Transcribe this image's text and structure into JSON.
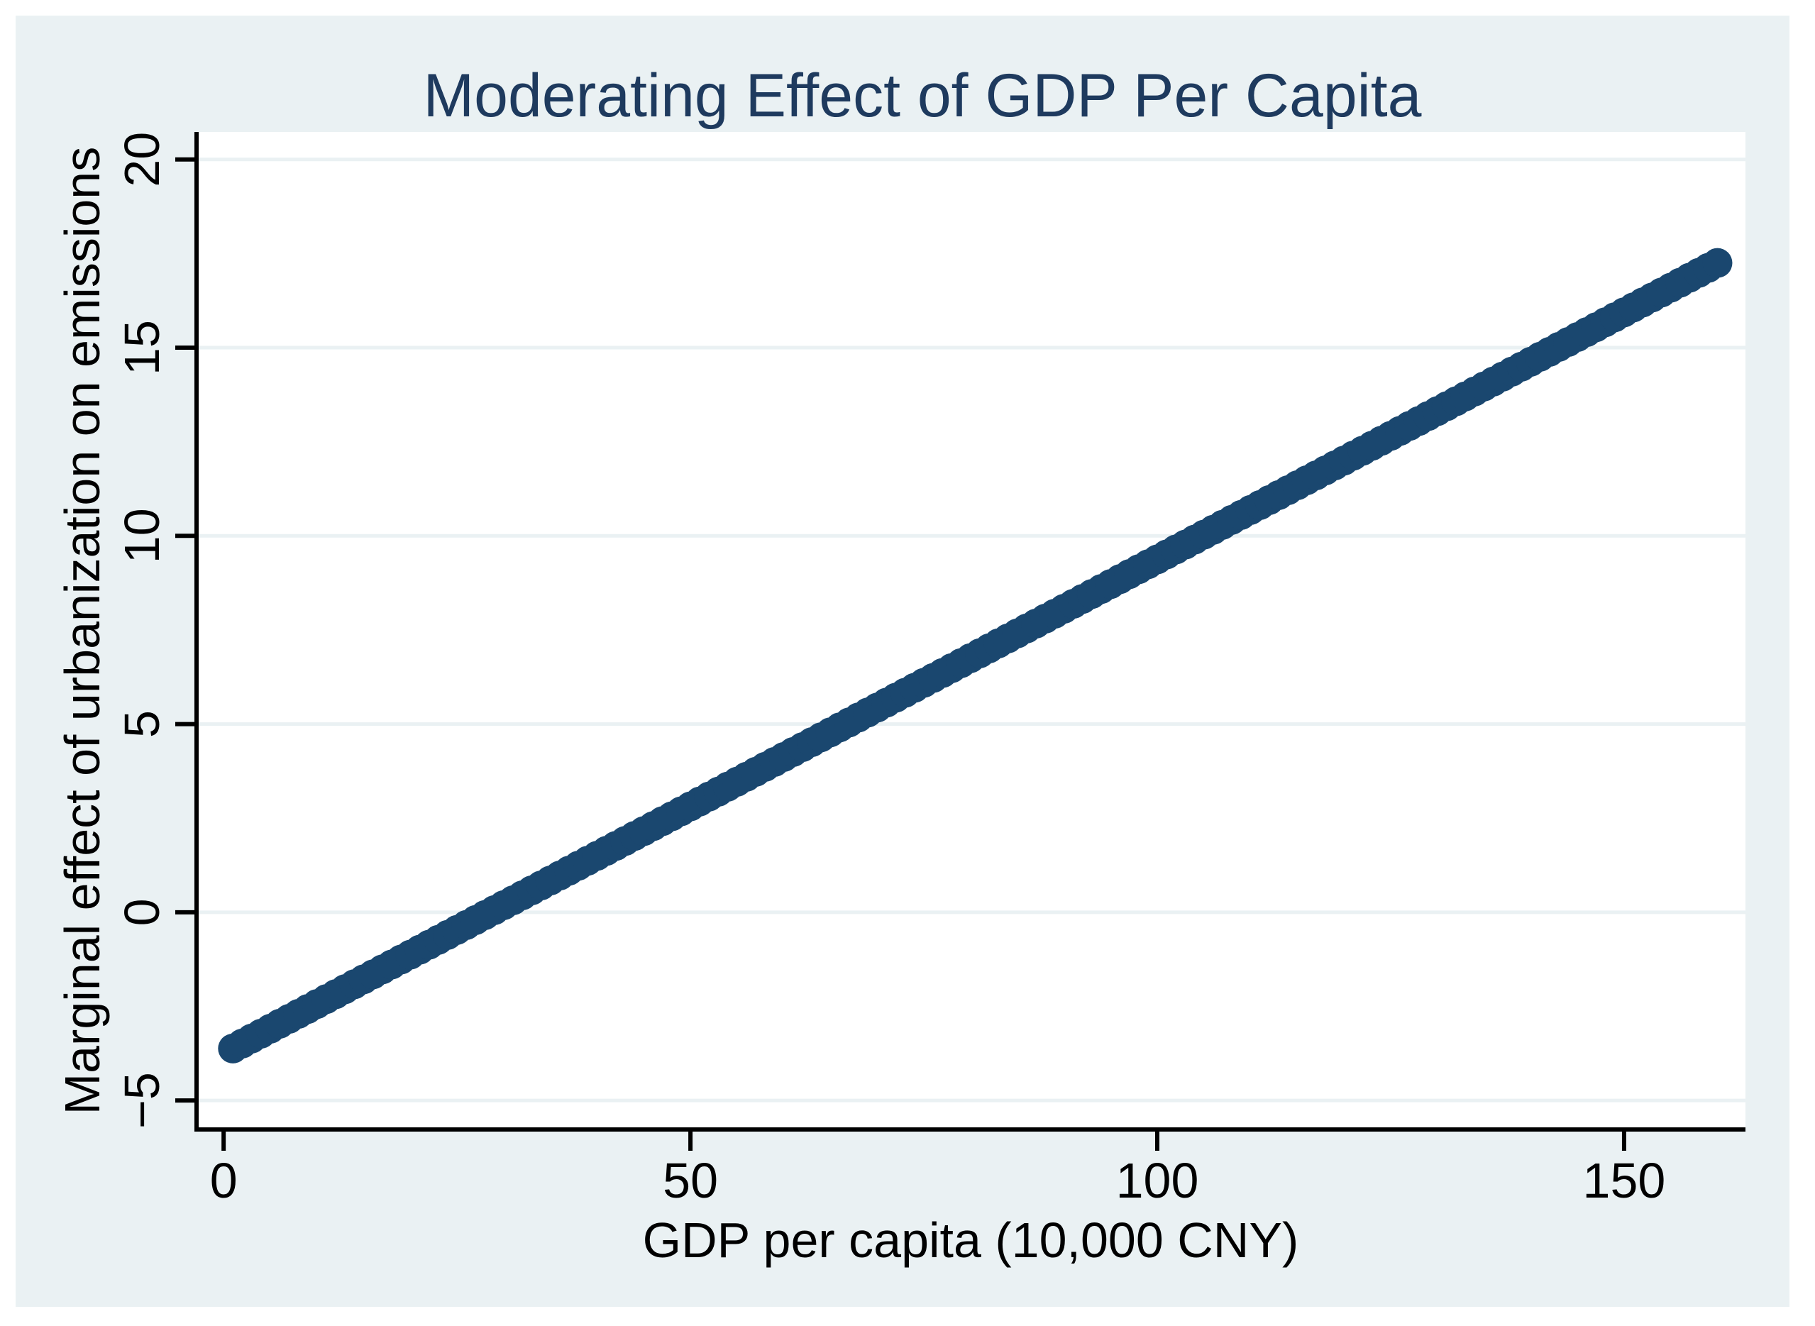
{
  "colors": {
    "canvas_background": "#eaf1f3",
    "plot_background": "#ffffff",
    "gridline": "#eaf1f3",
    "axis": "#000000",
    "marker": "#1a476f",
    "title_text": "#1e3a5e",
    "label_text": "#000000"
  },
  "chart_data": {
    "type": "scatter",
    "title": "Moderating Effect of GDP Per Capita",
    "xlabel": "GDP per capita (10,000 CNY)",
    "ylabel": "Marginal effect of urbanization on emissions",
    "xlim": [
      -2.9,
      163
    ],
    "ylim": [
      -5.77,
      20.73
    ],
    "x_ticks": [
      0,
      50,
      100,
      150
    ],
    "x_tick_labels": [
      "0",
      "50",
      "100",
      "150"
    ],
    "y_ticks": [
      -5,
      0,
      5,
      10,
      15,
      20
    ],
    "y_tick_labels": [
      "−5",
      "0",
      "5",
      "10",
      "15",
      "20"
    ],
    "grid": "horizontal",
    "legend": "none",
    "series": [
      {
        "name": "marginal-effect-of-urbanization",
        "line_style": "dense-round-markers",
        "marker_color": "#1a476f",
        "x_start": 1,
        "x_end": 160,
        "n_points": 160,
        "slope": 0.13125,
        "intercept": -3.75
      }
    ],
    "points_sample": [
      {
        "x": 1,
        "y": -3.62
      },
      {
        "x": 10,
        "y": -2.44
      },
      {
        "x": 20,
        "y": -1.13
      },
      {
        "x": 30,
        "y": 0.19
      },
      {
        "x": 40,
        "y": 1.5
      },
      {
        "x": 50,
        "y": 2.81
      },
      {
        "x": 60,
        "y": 4.13
      },
      {
        "x": 70,
        "y": 5.44
      },
      {
        "x": 80,
        "y": 6.75
      },
      {
        "x": 90,
        "y": 8.06
      },
      {
        "x": 100,
        "y": 9.38
      },
      {
        "x": 110,
        "y": 10.69
      },
      {
        "x": 120,
        "y": 12.0
      },
      {
        "x": 130,
        "y": 13.31
      },
      {
        "x": 140,
        "y": 14.63
      },
      {
        "x": 150,
        "y": 15.94
      },
      {
        "x": 160,
        "y": 17.25
      }
    ]
  }
}
